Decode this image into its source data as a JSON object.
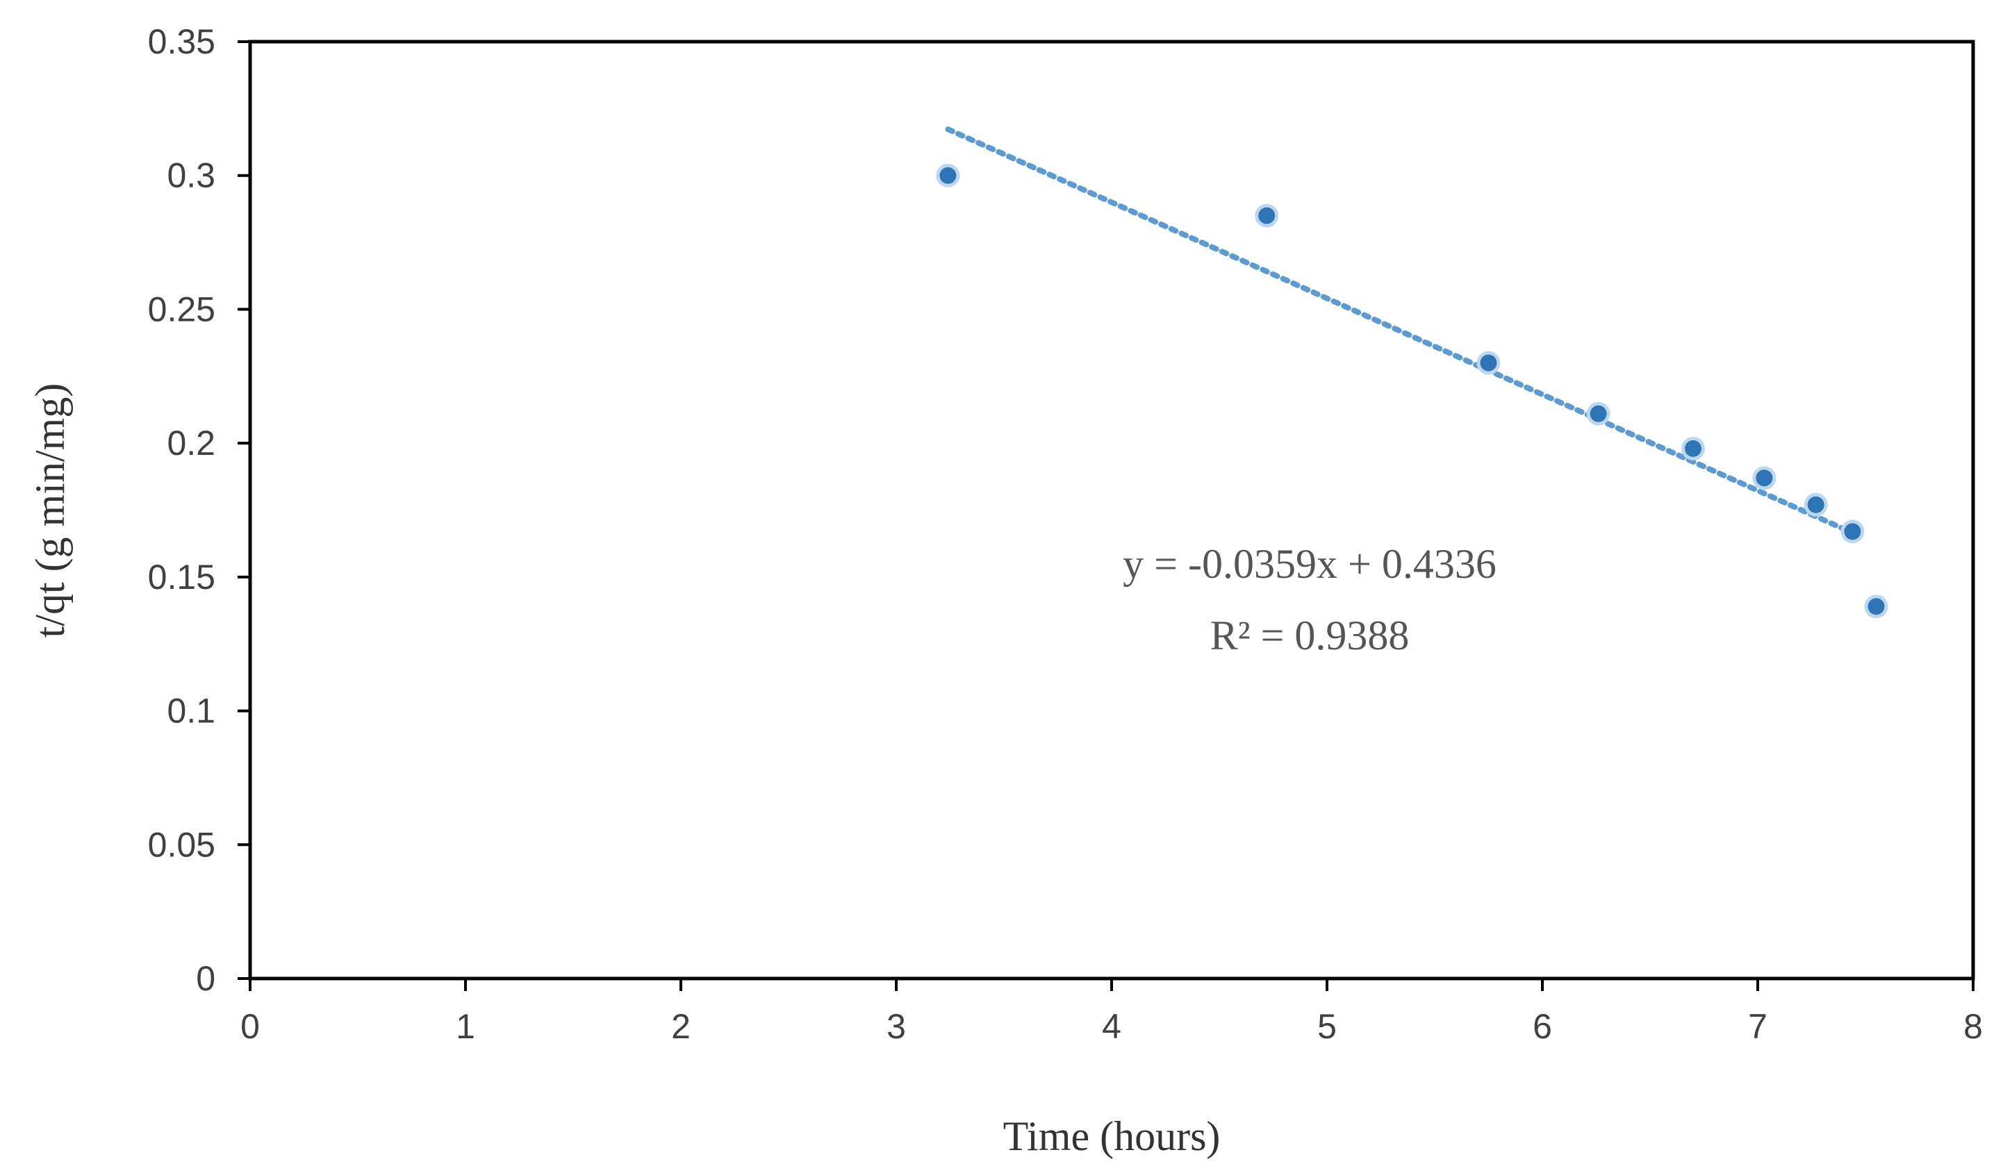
{
  "chart_data": {
    "type": "scatter",
    "title": "",
    "xlabel": "Time (hours)",
    "ylabel": "t/qt (g min/mg)",
    "xlim": [
      0,
      8
    ],
    "ylim": [
      0,
      0.35
    ],
    "x_ticks": [
      0,
      1,
      2,
      3,
      4,
      5,
      6,
      7,
      8
    ],
    "y_ticks": [
      0,
      0.05,
      0.1,
      0.15,
      0.2,
      0.25,
      0.3,
      0.35
    ],
    "x_tick_labels": [
      "0",
      "1",
      "2",
      "3",
      "4",
      "5",
      "6",
      "7",
      "8"
    ],
    "y_tick_labels": [
      "0",
      "0.05",
      "0.1",
      "0.15",
      "0.2",
      "0.25",
      "0.3",
      "0.35"
    ],
    "grid": false,
    "series": [
      {
        "name": "data",
        "x": [
          3.24,
          4.72,
          5.75,
          6.26,
          6.7,
          7.03,
          7.27,
          7.44,
          7.55
        ],
        "y": [
          0.3,
          0.285,
          0.23,
          0.211,
          0.198,
          0.187,
          0.177,
          0.167,
          0.139
        ],
        "color": "#2e75b6"
      }
    ],
    "trendline": {
      "type": "linear",
      "slope": -0.0359,
      "intercept": 0.4336,
      "x_range": [
        3.24,
        7.44
      ],
      "color": "#5b9bd5",
      "equation": "y = -0.0359x + 0.4336",
      "r_squared": "R² = 0.9388"
    }
  }
}
